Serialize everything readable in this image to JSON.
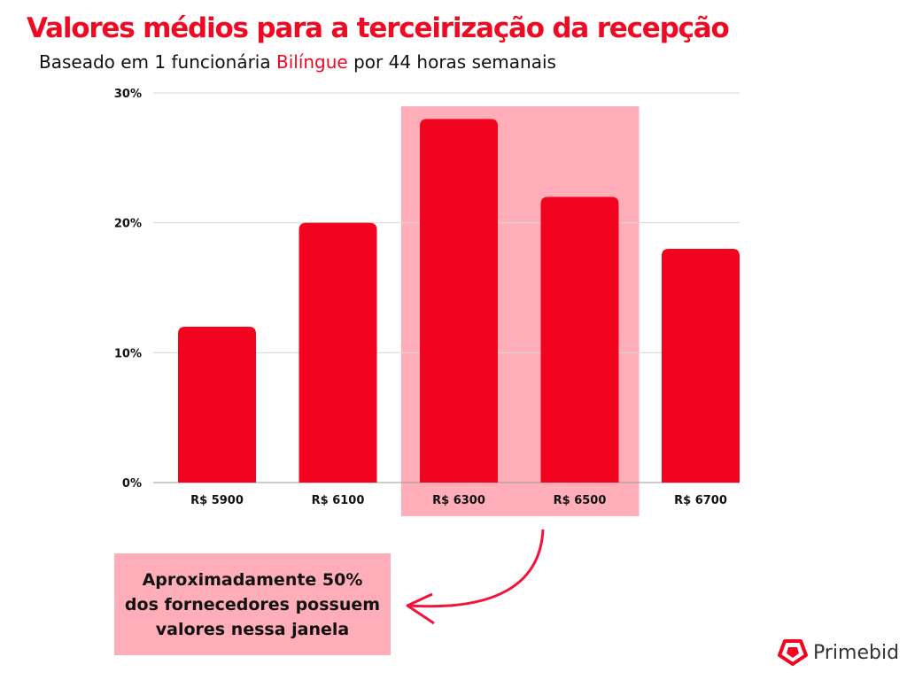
{
  "title": "Valores médios para a terceirização da recepção",
  "subtitle": {
    "before": "Baseado em 1 funcionária ",
    "highlight": "Bilíngue",
    "after": " por 44 horas semanais"
  },
  "chart_data": {
    "type": "bar",
    "categories": [
      "R$ 5900",
      "R$ 6100",
      "R$ 6300",
      "R$ 6500",
      "R$ 6700"
    ],
    "values": [
      12,
      20,
      28,
      22,
      18
    ],
    "ylim": [
      0,
      30
    ],
    "yticks": [
      0,
      10,
      20,
      30
    ],
    "ytick_labels": [
      "0%",
      "10%",
      "20%",
      "30%"
    ],
    "highlighted_categories": [
      "R$ 6300",
      "R$ 6500"
    ],
    "grid": true,
    "bar_color": "#f2041f",
    "highlight_color": "#ffadb9"
  },
  "callout": {
    "lines": [
      "Aproximadamente 50%",
      "dos fornecedores possuem",
      "valores nessa janela"
    ]
  },
  "logo": {
    "text": "Primebid"
  }
}
